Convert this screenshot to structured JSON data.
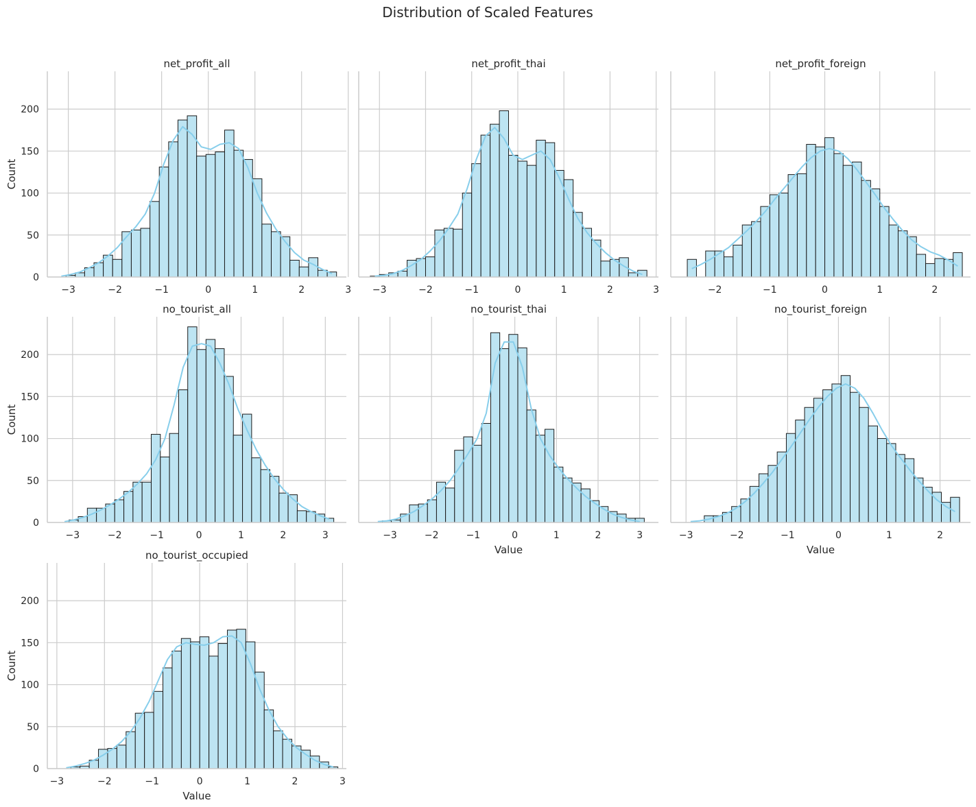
{
  "figure": {
    "title": "Distribution of Scaled Features",
    "bar_fill": "#bde4f2",
    "bar_edge": "#1a1a1a",
    "kde_color": "#87ceeb",
    "grid_color": "#cccccc",
    "axis_color": "#cccccc"
  },
  "chart_data": [
    {
      "type": "bar",
      "title": "net_profit_all",
      "xlabel": "",
      "ylabel": "Count",
      "xlim": [
        -3.45,
        2.96
      ],
      "ylim": [
        0,
        245
      ],
      "xticks": [
        -3,
        -2,
        -1,
        0,
        1,
        2,
        3
      ],
      "yticks": [
        0,
        50,
        100,
        150,
        200
      ],
      "grid": true,
      "bins_start": -3.25,
      "bin_width": 0.2,
      "counts": [
        0,
        2,
        5,
        11,
        17,
        26,
        21,
        54,
        56,
        58,
        90,
        131,
        161,
        187,
        192,
        144,
        146,
        149,
        175,
        151,
        140,
        117,
        63,
        54,
        48,
        20,
        12,
        23,
        8,
        6
      ],
      "kde": [
        1,
        3,
        6,
        11,
        17,
        25,
        35,
        48,
        60,
        75,
        100,
        135,
        163,
        179,
        170,
        155,
        152,
        158,
        160,
        153,
        130,
        100,
        76,
        57,
        42,
        29,
        20,
        15,
        9,
        4
      ]
    },
    {
      "type": "bar",
      "title": "net_profit_thai",
      "xlabel": "",
      "ylabel": "",
      "xlim": [
        -3.45,
        3.05
      ],
      "ylim": [
        0,
        245
      ],
      "xticks": [
        -3,
        -2,
        -1,
        0,
        1,
        2,
        3
      ],
      "yticks": [
        0,
        50,
        100,
        150,
        200
      ],
      "grid": true,
      "bins_start": -3.2,
      "bin_width": 0.2,
      "counts": [
        1,
        3,
        5,
        7,
        20,
        22,
        24,
        56,
        58,
        57,
        100,
        135,
        169,
        182,
        198,
        145,
        138,
        133,
        163,
        160,
        127,
        116,
        77,
        58,
        44,
        19,
        21,
        23,
        5,
        8
      ],
      "kde": [
        1,
        2,
        4,
        8,
        14,
        21,
        31,
        43,
        58,
        75,
        105,
        140,
        168,
        178,
        165,
        145,
        140,
        145,
        150,
        140,
        118,
        93,
        70,
        53,
        40,
        29,
        20,
        13,
        7,
        3
      ]
    },
    {
      "type": "bar",
      "title": "net_profit_foreign",
      "xlabel": "",
      "ylabel": "",
      "xlim": [
        -2.8,
        2.65
      ],
      "ylim": [
        0,
        245
      ],
      "xticks": [
        -2,
        -1,
        0,
        1,
        2
      ],
      "yticks": [
        0,
        50,
        100,
        150,
        200
      ],
      "grid": true,
      "bins_start": -2.5,
      "bin_width": 0.1667,
      "counts": [
        21,
        0,
        31,
        31,
        24,
        38,
        62,
        66,
        84,
        98,
        100,
        122,
        123,
        158,
        155,
        166,
        147,
        133,
        137,
        115,
        105,
        84,
        62,
        55,
        48,
        27,
        16,
        22,
        21,
        29
      ],
      "kde": [
        10,
        15,
        21,
        28,
        35,
        45,
        55,
        66,
        78,
        92,
        105,
        118,
        131,
        142,
        150,
        153,
        150,
        141,
        128,
        113,
        98,
        82,
        68,
        55,
        44,
        36,
        30,
        26,
        20,
        13
      ]
    },
    {
      "type": "bar",
      "title": "no_tourist_all",
      "xlabel": "",
      "ylabel": "Count",
      "xlim": [
        -3.6,
        3.5
      ],
      "ylim": [
        0,
        245
      ],
      "xticks": [
        -3,
        -2,
        -1,
        0,
        1,
        2,
        3
      ],
      "yticks": [
        0,
        50,
        100,
        150,
        200
      ],
      "grid": true,
      "bins_start": -3.3,
      "bin_width": 0.2167,
      "counts": [
        0,
        3,
        7,
        17,
        17,
        22,
        27,
        37,
        48,
        48,
        105,
        78,
        106,
        158,
        233,
        206,
        218,
        207,
        174,
        104,
        129,
        77,
        63,
        55,
        35,
        33,
        14,
        13,
        10,
        5
      ],
      "kde": [
        1,
        3,
        6,
        10,
        15,
        21,
        28,
        36,
        46,
        58,
        75,
        100,
        140,
        185,
        210,
        213,
        210,
        190,
        165,
        135,
        110,
        87,
        68,
        52,
        39,
        28,
        19,
        13,
        8,
        4
      ]
    },
    {
      "type": "bar",
      "title": "no_tourist_thai",
      "xlabel": "Value",
      "ylabel": "",
      "xlim": [
        -3.75,
        3.45
      ],
      "ylim": [
        0,
        245
      ],
      "xticks": [
        -3,
        -2,
        -1,
        0,
        1,
        2,
        3
      ],
      "yticks": [
        0,
        50,
        100,
        150,
        200
      ],
      "grid": true,
      "bins_start": -3.4,
      "bin_width": 0.217,
      "counts": [
        0,
        2,
        3,
        10,
        21,
        22,
        27,
        48,
        41,
        86,
        102,
        92,
        118,
        226,
        207,
        224,
        208,
        134,
        104,
        111,
        66,
        53,
        47,
        40,
        26,
        19,
        13,
        10,
        5,
        5
      ],
      "kde": [
        1,
        2,
        4,
        8,
        13,
        20,
        28,
        38,
        50,
        65,
        82,
        100,
        130,
        190,
        215,
        215,
        185,
        135,
        100,
        80,
        65,
        52,
        41,
        31,
        23,
        16,
        10,
        6,
        3,
        1
      ]
    },
    {
      "type": "bar",
      "title": "no_tourist_foreign",
      "xlabel": "Value",
      "ylabel": "",
      "xlim": [
        -3.3,
        2.6
      ],
      "ylim": [
        0,
        245
      ],
      "xticks": [
        -3,
        -2,
        -1,
        0,
        1,
        2
      ],
      "yticks": [
        0,
        50,
        100,
        150,
        200
      ],
      "grid": true,
      "bins_start": -3.0,
      "bin_width": 0.1795,
      "counts": [
        0,
        0,
        8,
        8,
        12,
        19,
        28,
        43,
        58,
        68,
        84,
        106,
        122,
        137,
        148,
        158,
        165,
        175,
        155,
        137,
        115,
        100,
        94,
        81,
        76,
        53,
        42,
        36,
        24,
        30
      ],
      "kde": [
        1,
        2,
        4,
        7,
        11,
        17,
        25,
        35,
        47,
        60,
        75,
        90,
        106,
        122,
        137,
        150,
        160,
        165,
        160,
        148,
        130,
        110,
        92,
        77,
        63,
        50,
        38,
        27,
        19,
        13
      ]
    },
    {
      "type": "bar",
      "title": "no_tourist_occupied",
      "xlabel": "Value",
      "ylabel": "Count",
      "xlim": [
        -3.2,
        3.08
      ],
      "ylim": [
        0,
        245
      ],
      "xticks": [
        -3,
        -2,
        -1,
        0,
        1,
        2,
        3
      ],
      "yticks": [
        0,
        50,
        100,
        150,
        200
      ],
      "grid": true,
      "bins_start": -2.9,
      "bin_width": 0.1934,
      "counts": [
        0,
        2,
        3,
        10,
        23,
        24,
        28,
        44,
        66,
        67,
        92,
        120,
        140,
        155,
        151,
        157,
        134,
        149,
        165,
        166,
        151,
        115,
        70,
        45,
        35,
        27,
        22,
        15,
        8,
        2
      ],
      "kde": [
        1,
        3,
        6,
        10,
        16,
        23,
        32,
        44,
        60,
        80,
        105,
        130,
        145,
        150,
        148,
        147,
        150,
        157,
        158,
        150,
        125,
        95,
        70,
        50,
        36,
        25,
        17,
        10,
        5,
        2
      ]
    }
  ]
}
